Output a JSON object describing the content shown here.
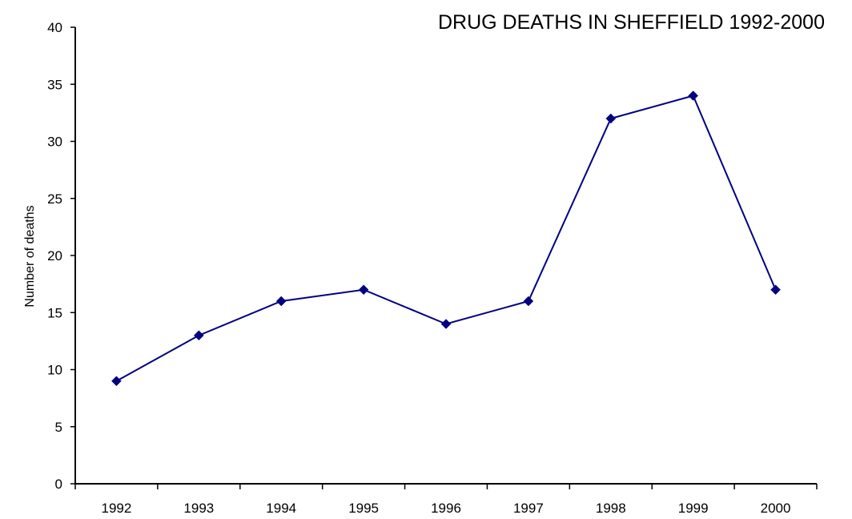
{
  "chart_data": {
    "type": "line",
    "title": "DRUG DEATHS IN SHEFFIELD 1992-2000",
    "xlabel": "",
    "ylabel": "Number of deaths",
    "categories": [
      "1992",
      "1993",
      "1994",
      "1995",
      "1996",
      "1997",
      "1998",
      "1999",
      "2000"
    ],
    "series": [
      {
        "values": [
          9,
          13,
          16,
          17,
          14,
          16,
          32,
          34,
          17
        ],
        "color": "#000080",
        "marker": "diamond"
      }
    ],
    "ylim": [
      0,
      40
    ],
    "yticks": [
      0,
      5,
      10,
      15,
      20,
      25,
      30,
      35,
      40
    ],
    "grid": false,
    "legend": "none"
  }
}
